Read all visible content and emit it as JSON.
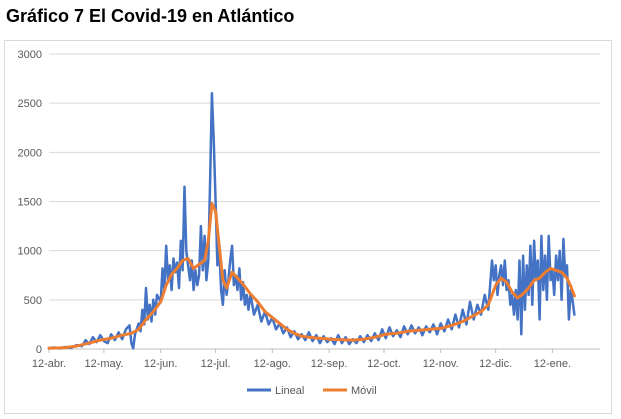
{
  "title": "Gráfico 7 El Covid-19 en Atlántico",
  "chart_data": {
    "type": "line",
    "title": "",
    "xlabel": "",
    "ylabel": "",
    "ylim": [
      0,
      3000
    ],
    "yticks": [
      0,
      500,
      1000,
      1500,
      2000,
      2500,
      3000
    ],
    "ytick_labels": [
      "0",
      "500",
      "1000",
      "1500",
      "2000",
      "2500",
      "3000"
    ],
    "grid": true,
    "legend": "bottom",
    "xlim": [
      "2020-04-12",
      "2021-02-07"
    ],
    "xtick_dates": [
      "2020-04-12",
      "2020-05-12",
      "2020-06-12",
      "2020-07-12",
      "2020-08-12",
      "2020-09-12",
      "2020-10-12",
      "2020-11-12",
      "2020-12-12",
      "2021-01-12"
    ],
    "xtick_labels": [
      "12-abr.",
      "12-may.",
      "12-jun.",
      "12-jul.",
      "12-ago.",
      "12-sep.",
      "12-oct.",
      "12-nov.",
      "12-dic.",
      "12-ene."
    ],
    "series": [
      {
        "name": "Lineal",
        "color": "#4472c4",
        "points": [
          [
            "2020-04-12",
            10
          ],
          [
            "2020-04-15",
            15
          ],
          [
            "2020-04-18",
            5
          ],
          [
            "2020-04-21",
            20
          ],
          [
            "2020-04-24",
            10
          ],
          [
            "2020-04-27",
            40
          ],
          [
            "2020-04-30",
            30
          ],
          [
            "2020-05-02",
            90
          ],
          [
            "2020-05-04",
            50
          ],
          [
            "2020-05-06",
            120
          ],
          [
            "2020-05-08",
            70
          ],
          [
            "2020-05-10",
            140
          ],
          [
            "2020-05-12",
            80
          ],
          [
            "2020-05-14",
            60
          ],
          [
            "2020-05-16",
            150
          ],
          [
            "2020-05-18",
            90
          ],
          [
            "2020-05-20",
            170
          ],
          [
            "2020-05-22",
            100
          ],
          [
            "2020-05-24",
            200
          ],
          [
            "2020-05-26",
            240
          ],
          [
            "2020-05-27",
            60
          ],
          [
            "2020-05-28",
            5
          ],
          [
            "2020-05-29",
            150
          ],
          [
            "2020-05-31",
            260
          ],
          [
            "2020-06-01",
            180
          ],
          [
            "2020-06-02",
            400
          ],
          [
            "2020-06-03",
            250
          ],
          [
            "2020-06-04",
            620
          ],
          [
            "2020-06-05",
            300
          ],
          [
            "2020-06-06",
            450
          ],
          [
            "2020-06-07",
            280
          ],
          [
            "2020-06-08",
            500
          ],
          [
            "2020-06-09",
            350
          ],
          [
            "2020-06-10",
            550
          ],
          [
            "2020-06-12",
            480
          ],
          [
            "2020-06-13",
            820
          ],
          [
            "2020-06-14",
            600
          ],
          [
            "2020-06-15",
            1050
          ],
          [
            "2020-06-16",
            700
          ],
          [
            "2020-06-17",
            850
          ],
          [
            "2020-06-18",
            600
          ],
          [
            "2020-06-19",
            920
          ],
          [
            "2020-06-20",
            780
          ],
          [
            "2020-06-21",
            880
          ],
          [
            "2020-06-22",
            620
          ],
          [
            "2020-06-23",
            1100
          ],
          [
            "2020-06-24",
            800
          ],
          [
            "2020-06-25",
            1650
          ],
          [
            "2020-06-26",
            1000
          ],
          [
            "2020-06-27",
            850
          ],
          [
            "2020-06-28",
            700
          ],
          [
            "2020-06-29",
            900
          ],
          [
            "2020-06-30",
            600
          ],
          [
            "2020-07-01",
            800
          ],
          [
            "2020-07-02",
            650
          ],
          [
            "2020-07-03",
            750
          ],
          [
            "2020-07-04",
            1250
          ],
          [
            "2020-07-05",
            800
          ],
          [
            "2020-07-06",
            1150
          ],
          [
            "2020-07-07",
            700
          ],
          [
            "2020-07-08",
            900
          ],
          [
            "2020-07-09",
            1700
          ],
          [
            "2020-07-10",
            2600
          ],
          [
            "2020-07-11",
            2100
          ],
          [
            "2020-07-12",
            1500
          ],
          [
            "2020-07-13",
            850
          ],
          [
            "2020-07-14",
            1050
          ],
          [
            "2020-07-15",
            600
          ],
          [
            "2020-07-16",
            450
          ],
          [
            "2020-07-17",
            800
          ],
          [
            "2020-07-18",
            550
          ],
          [
            "2020-07-19",
            700
          ],
          [
            "2020-07-20",
            900
          ],
          [
            "2020-07-21",
            1050
          ],
          [
            "2020-07-22",
            650
          ],
          [
            "2020-07-23",
            750
          ],
          [
            "2020-07-24",
            600
          ],
          [
            "2020-07-25",
            820
          ],
          [
            "2020-07-26",
            500
          ],
          [
            "2020-07-27",
            680
          ],
          [
            "2020-07-28",
            450
          ],
          [
            "2020-07-29",
            550
          ],
          [
            "2020-07-30",
            400
          ],
          [
            "2020-07-31",
            560
          ],
          [
            "2020-08-02",
            350
          ],
          [
            "2020-08-04",
            450
          ],
          [
            "2020-08-06",
            280
          ],
          [
            "2020-08-08",
            380
          ],
          [
            "2020-08-10",
            250
          ],
          [
            "2020-08-12",
            320
          ],
          [
            "2020-08-14",
            200
          ],
          [
            "2020-08-16",
            260
          ],
          [
            "2020-08-18",
            160
          ],
          [
            "2020-08-20",
            220
          ],
          [
            "2020-08-22",
            120
          ],
          [
            "2020-08-24",
            180
          ],
          [
            "2020-08-26",
            100
          ],
          [
            "2020-08-28",
            150
          ],
          [
            "2020-08-30",
            90
          ],
          [
            "2020-09-01",
            170
          ],
          [
            "2020-09-03",
            80
          ],
          [
            "2020-09-05",
            140
          ],
          [
            "2020-09-07",
            60
          ],
          [
            "2020-09-09",
            130
          ],
          [
            "2020-09-11",
            70
          ],
          [
            "2020-09-13",
            110
          ],
          [
            "2020-09-15",
            50
          ],
          [
            "2020-09-17",
            140
          ],
          [
            "2020-09-19",
            60
          ],
          [
            "2020-09-21",
            120
          ],
          [
            "2020-09-23",
            50
          ],
          [
            "2020-09-25",
            100
          ],
          [
            "2020-09-27",
            60
          ],
          [
            "2020-09-29",
            130
          ],
          [
            "2020-10-01",
            70
          ],
          [
            "2020-10-03",
            140
          ],
          [
            "2020-10-05",
            80
          ],
          [
            "2020-10-07",
            160
          ],
          [
            "2020-10-09",
            90
          ],
          [
            "2020-10-11",
            200
          ],
          [
            "2020-10-13",
            110
          ],
          [
            "2020-10-15",
            220
          ],
          [
            "2020-10-17",
            130
          ],
          [
            "2020-10-19",
            190
          ],
          [
            "2020-10-21",
            120
          ],
          [
            "2020-10-23",
            230
          ],
          [
            "2020-10-25",
            150
          ],
          [
            "2020-10-27",
            240
          ],
          [
            "2020-10-29",
            160
          ],
          [
            "2020-10-31",
            220
          ],
          [
            "2020-11-02",
            140
          ],
          [
            "2020-11-04",
            230
          ],
          [
            "2020-11-06",
            170
          ],
          [
            "2020-11-08",
            250
          ],
          [
            "2020-11-10",
            150
          ],
          [
            "2020-11-12",
            260
          ],
          [
            "2020-11-14",
            180
          ],
          [
            "2020-11-16",
            300
          ],
          [
            "2020-11-18",
            200
          ],
          [
            "2020-11-20",
            350
          ],
          [
            "2020-11-22",
            220
          ],
          [
            "2020-11-24",
            400
          ],
          [
            "2020-11-26",
            250
          ],
          [
            "2020-11-28",
            480
          ],
          [
            "2020-11-30",
            300
          ],
          [
            "2020-12-02",
            450
          ],
          [
            "2020-12-04",
            350
          ],
          [
            "2020-12-06",
            550
          ],
          [
            "2020-12-08",
            400
          ],
          [
            "2020-12-10",
            900
          ],
          [
            "2020-12-11",
            700
          ],
          [
            "2020-12-12",
            850
          ],
          [
            "2020-12-13",
            550
          ],
          [
            "2020-12-14",
            750
          ],
          [
            "2020-12-15",
            850
          ],
          [
            "2020-12-16",
            650
          ],
          [
            "2020-12-17",
            900
          ],
          [
            "2020-12-18",
            600
          ],
          [
            "2020-12-19",
            700
          ],
          [
            "2020-12-20",
            450
          ],
          [
            "2020-12-21",
            550
          ],
          [
            "2020-12-22",
            350
          ],
          [
            "2020-12-23",
            600
          ],
          [
            "2020-12-24",
            300
          ],
          [
            "2020-12-25",
            900
          ],
          [
            "2020-12-26",
            150
          ],
          [
            "2020-12-27",
            950
          ],
          [
            "2020-12-28",
            400
          ],
          [
            "2020-12-29",
            850
          ],
          [
            "2020-12-30",
            550
          ],
          [
            "2020-12-31",
            1050
          ],
          [
            "2021-01-01",
            450
          ],
          [
            "2021-01-02",
            1100
          ],
          [
            "2021-01-03",
            700
          ],
          [
            "2021-01-04",
            900
          ],
          [
            "2021-01-05",
            300
          ],
          [
            "2021-01-06",
            1150
          ],
          [
            "2021-01-07",
            600
          ],
          [
            "2021-01-08",
            950
          ],
          [
            "2021-01-09",
            500
          ],
          [
            "2021-01-10",
            1150
          ],
          [
            "2021-01-11",
            700
          ],
          [
            "2021-01-12",
            800
          ],
          [
            "2021-01-13",
            550
          ],
          [
            "2021-01-14",
            950
          ],
          [
            "2021-01-15",
            700
          ],
          [
            "2021-01-16",
            1000
          ],
          [
            "2021-01-17",
            500
          ],
          [
            "2021-01-18",
            1120
          ],
          [
            "2021-01-19",
            750
          ],
          [
            "2021-01-20",
            850
          ],
          [
            "2021-01-21",
            300
          ],
          [
            "2021-01-22",
            600
          ],
          [
            "2021-01-23",
            500
          ],
          [
            "2021-01-24",
            350
          ]
        ]
      },
      {
        "name": "Móvil",
        "color": "#ed7d31",
        "points": [
          [
            "2020-04-12",
            8
          ],
          [
            "2020-04-20",
            12
          ],
          [
            "2020-04-27",
            30
          ],
          [
            "2020-05-04",
            60
          ],
          [
            "2020-05-10",
            90
          ],
          [
            "2020-05-16",
            110
          ],
          [
            "2020-05-22",
            140
          ],
          [
            "2020-05-27",
            160
          ],
          [
            "2020-05-31",
            200
          ],
          [
            "2020-06-04",
            300
          ],
          [
            "2020-06-08",
            380
          ],
          [
            "2020-06-12",
            480
          ],
          [
            "2020-06-15",
            650
          ],
          [
            "2020-06-18",
            760
          ],
          [
            "2020-06-21",
            820
          ],
          [
            "2020-06-24",
            900
          ],
          [
            "2020-06-27",
            920
          ],
          [
            "2020-06-30",
            820
          ],
          [
            "2020-07-03",
            860
          ],
          [
            "2020-07-06",
            900
          ],
          [
            "2020-07-08",
            1100
          ],
          [
            "2020-07-10",
            1480
          ],
          [
            "2020-07-12",
            1400
          ],
          [
            "2020-07-14",
            1050
          ],
          [
            "2020-07-16",
            700
          ],
          [
            "2020-07-18",
            620
          ],
          [
            "2020-07-21",
            780
          ],
          [
            "2020-07-24",
            720
          ],
          [
            "2020-07-27",
            660
          ],
          [
            "2020-07-31",
            560
          ],
          [
            "2020-08-04",
            480
          ],
          [
            "2020-08-08",
            380
          ],
          [
            "2020-08-12",
            320
          ],
          [
            "2020-08-16",
            260
          ],
          [
            "2020-08-20",
            200
          ],
          [
            "2020-08-24",
            160
          ],
          [
            "2020-08-28",
            130
          ],
          [
            "2020-09-01",
            120
          ],
          [
            "2020-09-07",
            110
          ],
          [
            "2020-09-13",
            100
          ],
          [
            "2020-09-19",
            95
          ],
          [
            "2020-09-25",
            90
          ],
          [
            "2020-10-01",
            100
          ],
          [
            "2020-10-07",
            120
          ],
          [
            "2020-10-13",
            150
          ],
          [
            "2020-10-19",
            160
          ],
          [
            "2020-10-25",
            180
          ],
          [
            "2020-10-31",
            190
          ],
          [
            "2020-11-06",
            200
          ],
          [
            "2020-11-12",
            210
          ],
          [
            "2020-11-18",
            240
          ],
          [
            "2020-11-24",
            280
          ],
          [
            "2020-11-30",
            340
          ],
          [
            "2020-12-04",
            380
          ],
          [
            "2020-12-08",
            450
          ],
          [
            "2020-12-12",
            650
          ],
          [
            "2020-12-15",
            720
          ],
          [
            "2020-12-18",
            680
          ],
          [
            "2020-12-21",
            580
          ],
          [
            "2020-12-24",
            520
          ],
          [
            "2020-12-27",
            560
          ],
          [
            "2020-12-30",
            620
          ],
          [
            "2021-01-02",
            700
          ],
          [
            "2021-01-05",
            720
          ],
          [
            "2021-01-08",
            780
          ],
          [
            "2021-01-11",
            820
          ],
          [
            "2021-01-14",
            800
          ],
          [
            "2021-01-17",
            780
          ],
          [
            "2021-01-20",
            720
          ],
          [
            "2021-01-22",
            640
          ],
          [
            "2021-01-24",
            540
          ]
        ]
      }
    ]
  }
}
